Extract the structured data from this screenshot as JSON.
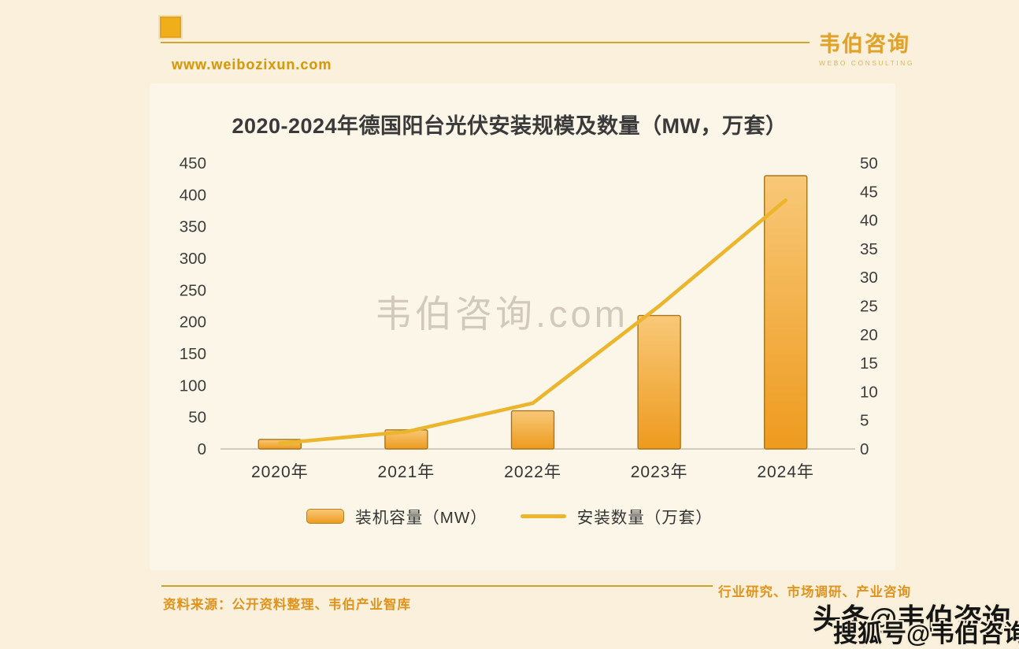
{
  "header": {
    "website": "www.weibozixun.com",
    "logo_name": "韦伯咨询",
    "logo_subtitle": "WEBO CONSULTING"
  },
  "watermarks": {
    "center": "韦伯咨询.com",
    "toutiao": "头条@韦伯咨询",
    "sohu": "搜狐号@韦伯咨询"
  },
  "footer": {
    "source": "资料来源：公开资料整理、韦伯产业智库",
    "services": "行业研究、市场调研、产业咨询"
  },
  "chart_data": {
    "type": "bar+line",
    "title": "2020-2024年德国阳台光伏安装规模及数量（MW，万套）",
    "categories": [
      "2020年",
      "2021年",
      "2022年",
      "2023年",
      "2024年"
    ],
    "series": [
      {
        "name": "装机容量（MW）",
        "type": "bar",
        "axis": "left",
        "values": [
          15,
          30,
          60,
          210,
          430
        ]
      },
      {
        "name": "安装数量（万套）",
        "type": "line",
        "axis": "right",
        "values": [
          1,
          3,
          8,
          25,
          43.5
        ]
      }
    ],
    "left_axis": {
      "min": 0,
      "max": 450,
      "step": 50,
      "ticks": [
        "450",
        "400",
        "350",
        "300",
        "250",
        "200",
        "150",
        "100",
        "50",
        "0"
      ]
    },
    "right_axis": {
      "min": 0,
      "max": 50,
      "step": 5,
      "ticks": [
        "50",
        "45",
        "40",
        "35",
        "30",
        "25",
        "20",
        "15",
        "10",
        "5",
        "0"
      ]
    },
    "legend_position": "bottom",
    "grid": false,
    "colors": {
      "bar_top": "#f8c878",
      "bar_bottom": "#ee9b1e",
      "bar_border": "#a8741c",
      "line": "#ecb52b",
      "axis_text": "#3d3d3d",
      "baseline": "#b5b0a3",
      "background": "#faf0dc"
    }
  }
}
